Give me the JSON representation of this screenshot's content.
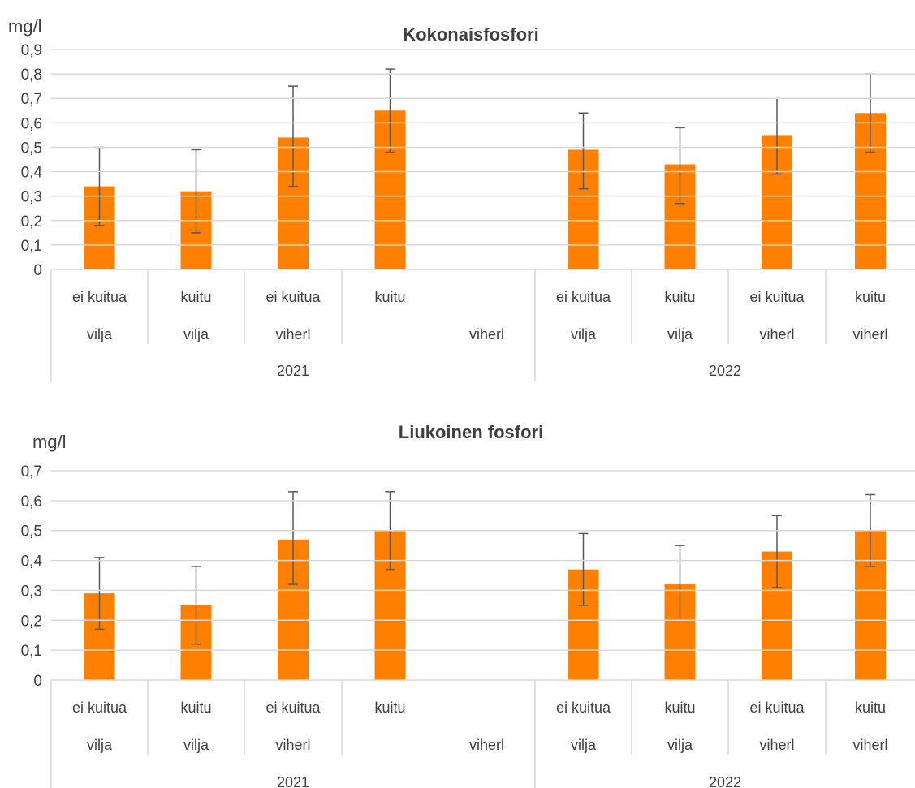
{
  "chart_data": [
    {
      "type": "bar",
      "title": "Kokonaisfosfori",
      "ylabel": "mg/l",
      "ylim": [
        0,
        0.9
      ],
      "ytick_labels": [
        "0",
        "0,1",
        "0,2",
        "0,3",
        "0,4",
        "0,5",
        "0,6",
        "0,7",
        "0,8",
        "0,9"
      ],
      "groups": [
        {
          "year": "2021",
          "categories": [
            {
              "fiber": "ei kuitua",
              "crop": "vilja",
              "value": 0.34,
              "err_low": 0.18,
              "err_high": 0.5,
              "has_bar": true
            },
            {
              "fiber": "kuitu",
              "crop": "vilja",
              "value": 0.32,
              "err_low": 0.15,
              "err_high": 0.49,
              "has_bar": true
            },
            {
              "fiber": "ei kuitua",
              "crop": "viherl",
              "value": 0.54,
              "err_low": 0.34,
              "err_high": 0.75,
              "has_bar": true
            },
            {
              "fiber": "kuitu",
              "crop": "",
              "value": 0.65,
              "err_low": 0.48,
              "err_high": 0.82,
              "has_bar": true
            },
            {
              "fiber": "",
              "crop": "viherl",
              "value": null,
              "err_low": null,
              "err_high": null,
              "has_bar": false
            }
          ]
        },
        {
          "year": "2022",
          "categories": [
            {
              "fiber": "ei kuitua",
              "crop": "vilja",
              "value": 0.49,
              "err_low": 0.33,
              "err_high": 0.64,
              "has_bar": true
            },
            {
              "fiber": "kuitu",
              "crop": "vilja",
              "value": 0.43,
              "err_low": 0.27,
              "err_high": 0.58,
              "has_bar": true
            },
            {
              "fiber": "ei kuitua",
              "crop": "viherl",
              "value": 0.55,
              "err_low": 0.39,
              "err_high": 0.7,
              "has_bar": true
            },
            {
              "fiber": "kuitu",
              "crop": "viherl",
              "value": 0.64,
              "err_low": 0.48,
              "err_high": 0.8,
              "has_bar": true
            }
          ]
        }
      ]
    },
    {
      "type": "bar",
      "title": "Liukoinen fosfori",
      "ylabel": "mg/l",
      "ylim": [
        0,
        0.7
      ],
      "ytick_labels": [
        "0",
        "0,1",
        "0,2",
        "0,3",
        "0,4",
        "0,5",
        "0,6",
        "0,7"
      ],
      "groups": [
        {
          "year": "2021",
          "categories": [
            {
              "fiber": "ei kuitua",
              "crop": "vilja",
              "value": 0.29,
              "err_low": 0.17,
              "err_high": 0.41,
              "has_bar": true
            },
            {
              "fiber": "kuitu",
              "crop": "vilja",
              "value": 0.25,
              "err_low": 0.12,
              "err_high": 0.38,
              "has_bar": true
            },
            {
              "fiber": "ei kuitua",
              "crop": "viherl",
              "value": 0.47,
              "err_low": 0.32,
              "err_high": 0.63,
              "has_bar": true
            },
            {
              "fiber": "kuitu",
              "crop": "",
              "value": 0.5,
              "err_low": 0.37,
              "err_high": 0.63,
              "has_bar": true
            },
            {
              "fiber": "",
              "crop": "viherl",
              "value": null,
              "err_low": null,
              "err_high": null,
              "has_bar": false
            }
          ]
        },
        {
          "year": "2022",
          "categories": [
            {
              "fiber": "ei kuitua",
              "crop": "vilja",
              "value": 0.37,
              "err_low": 0.25,
              "err_high": 0.49,
              "has_bar": true
            },
            {
              "fiber": "kuitu",
              "crop": "vilja",
              "value": 0.32,
              "err_low": 0.2,
              "err_high": 0.45,
              "has_bar": true
            },
            {
              "fiber": "ei kuitua",
              "crop": "viherl",
              "value": 0.43,
              "err_low": 0.31,
              "err_high": 0.55,
              "has_bar": true
            },
            {
              "fiber": "kuitu",
              "crop": "viherl",
              "value": 0.5,
              "err_low": 0.38,
              "err_high": 0.62,
              "has_bar": true
            }
          ]
        }
      ]
    }
  ],
  "colors": {
    "bar": "#ff8000",
    "error_bar": "#595959",
    "grid": "#d9d9d9",
    "text": "#404040"
  }
}
